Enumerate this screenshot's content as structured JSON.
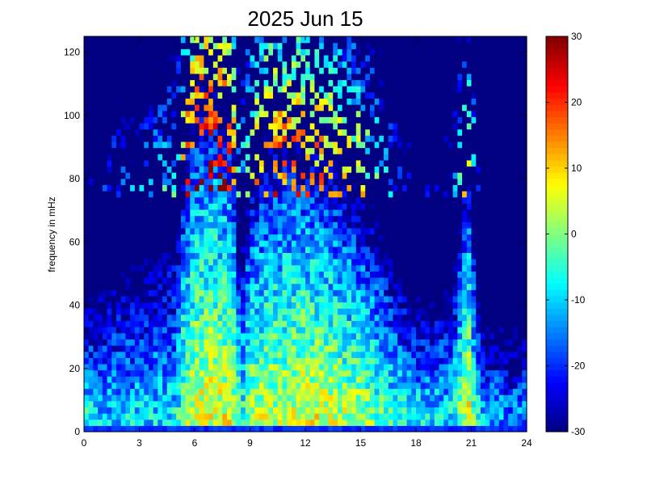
{
  "chart_data": {
    "type": "heatmap",
    "title": "2025 Jun 15",
    "ylabel": "frequency in mHz",
    "xlabel": "",
    "xlim": [
      0,
      24
    ],
    "ylim": [
      0,
      125
    ],
    "x_ticks": [
      0,
      3,
      6,
      9,
      12,
      15,
      18,
      21,
      24
    ],
    "y_ticks": [
      0,
      20,
      40,
      60,
      80,
      100,
      120
    ],
    "colorbar": {
      "range": [
        -30,
        30
      ],
      "ticks": [
        -30,
        -20,
        -10,
        0,
        10,
        20,
        30
      ],
      "colormap": "jet"
    },
    "grid": false,
    "time_bins": 96,
    "freq_bins": 64,
    "activity_profile": {
      "description_hours": [
        0,
        1,
        2,
        3,
        4,
        5,
        5.5,
        6,
        7,
        8,
        8.5,
        9,
        10,
        11,
        12,
        13,
        14,
        15,
        16,
        17,
        18,
        19,
        20,
        20.8,
        21.5,
        22,
        23,
        24
      ],
      "level_db_at_5mHz": [
        -8,
        -10,
        -10,
        -9,
        -9,
        -8,
        2,
        5,
        6,
        5,
        -6,
        2,
        3,
        4,
        6,
        5,
        3,
        2,
        -2,
        -6,
        -8,
        -9,
        -8,
        8,
        -12,
        -12,
        -14,
        -14
      ],
      "extent_mHz": [
        35,
        40,
        45,
        45,
        50,
        55,
        70,
        80,
        80,
        75,
        45,
        60,
        70,
        70,
        65,
        65,
        60,
        55,
        50,
        40,
        35,
        35,
        40,
        60,
        35,
        30,
        30,
        30
      ]
    }
  }
}
